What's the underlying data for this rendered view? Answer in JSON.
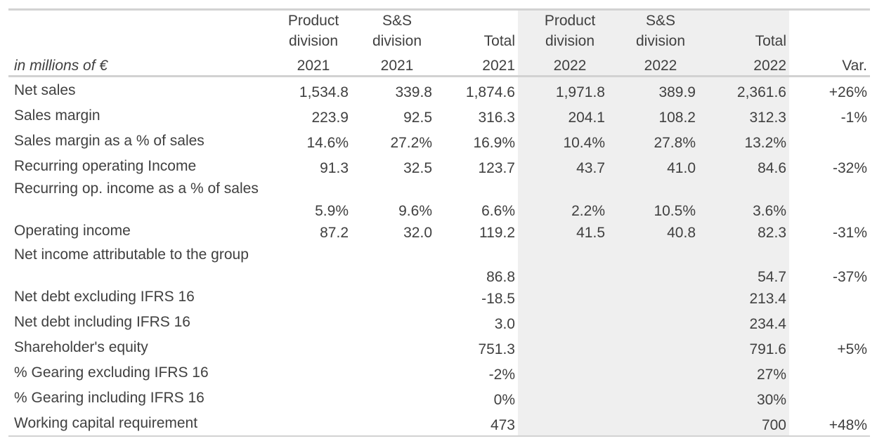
{
  "unit_label": "in millions of €",
  "columns": [
    {
      "line1": "Product",
      "line2": "division",
      "year": "2021"
    },
    {
      "line1": "S&S",
      "line2": "division",
      "year": "2021"
    },
    {
      "line1": "",
      "line2": "Total",
      "year": "2021"
    },
    {
      "line1": "Product",
      "line2": "division",
      "year": "2022"
    },
    {
      "line1": "S&S",
      "line2": "division",
      "year": "2022"
    },
    {
      "line1": "",
      "line2": "Total",
      "year": "2022"
    },
    {
      "line1": "",
      "line2": "",
      "year": "Var."
    }
  ],
  "rows": [
    {
      "label": "Net sales",
      "values": [
        "1,534.8",
        "339.8",
        "1,874.6",
        "1,971.8",
        "389.9",
        "2,361.6",
        "+26%"
      ]
    },
    {
      "label": "Sales margin",
      "values": [
        "223.9",
        "92.5",
        "316.3",
        "204.1",
        "108.2",
        "312.3",
        "-1%"
      ]
    },
    {
      "label": "Sales margin as a % of sales",
      "values": [
        "14.6%",
        "27.2%",
        "16.9%",
        "10.4%",
        "27.8%",
        "13.2%",
        ""
      ]
    },
    {
      "label": "Recurring operating Income",
      "values": [
        "91.3",
        "32.5",
        "123.7",
        "43.7",
        "41.0",
        "84.6",
        "-32%"
      ]
    },
    {
      "label": "Recurring op. income as a % of sales",
      "values": [
        "5.9%",
        "9.6%",
        "6.6%",
        "2.2%",
        "10.5%",
        "3.6%",
        ""
      ]
    },
    {
      "label": "Operating income",
      "values": [
        "87.2",
        "32.0",
        "119.2",
        "41.5",
        "40.8",
        "82.3",
        "-31%"
      ]
    },
    {
      "label": "Net income attributable to the group",
      "values": [
        "",
        "",
        "86.8",
        "",
        "",
        "54.7",
        "-37%"
      ]
    },
    {
      "label": "Net debt excluding IFRS 16",
      "values": [
        "",
        "",
        "-18.5",
        "",
        "",
        "213.4",
        ""
      ]
    },
    {
      "label": "Net debt including IFRS 16",
      "values": [
        "",
        "",
        "3.0",
        "",
        "",
        "234.4",
        ""
      ]
    },
    {
      "label": "Shareholder's equity",
      "values": [
        "",
        "",
        "751.3",
        "",
        "",
        "791.6",
        "+5%"
      ]
    },
    {
      "label": "% Gearing excluding IFRS 16",
      "values": [
        "",
        "",
        "-2%",
        "",
        "",
        "27%",
        ""
      ]
    },
    {
      "label": "% Gearing including IFRS 16",
      "values": [
        "",
        "",
        "0%",
        "",
        "",
        "30%",
        ""
      ]
    },
    {
      "label": "Working capital requirement",
      "values": [
        "",
        "",
        "473",
        "",
        "",
        "700",
        "+48%"
      ]
    }
  ]
}
